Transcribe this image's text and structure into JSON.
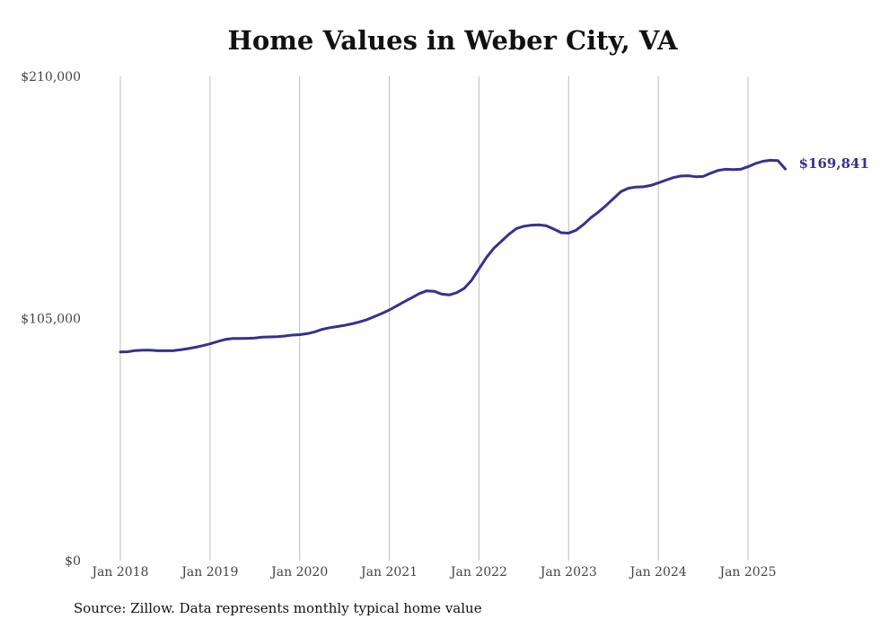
{
  "chart_data": {
    "type": "line",
    "title": "Home Values in Weber City, VA",
    "xlabel": "",
    "ylabel": "",
    "ylim": [
      0,
      210000
    ],
    "xlim": [
      "2018-01",
      "2025-06"
    ],
    "y_ticks": [
      0,
      105000,
      210000
    ],
    "y_tick_labels": [
      "$0",
      "$105,000",
      "$210,000"
    ],
    "x_ticks": [
      "2018-01",
      "2019-01",
      "2020-01",
      "2021-01",
      "2022-01",
      "2023-01",
      "2024-01",
      "2025-01"
    ],
    "x_tick_labels": [
      "Jan 2018",
      "Jan 2019",
      "Jan 2020",
      "Jan 2021",
      "Jan 2022",
      "Jan 2023",
      "Jan 2024",
      "Jan 2025"
    ],
    "grid": "vertical",
    "line_color": "#38308f",
    "end_label": "$169,841",
    "series": [
      {
        "x": [
          "2018-01",
          "2018-02",
          "2018-03",
          "2018-04",
          "2018-05",
          "2018-06",
          "2018-07",
          "2018-08",
          "2018-09",
          "2018-10",
          "2018-11",
          "2018-12",
          "2019-01",
          "2019-02",
          "2019-03",
          "2019-04",
          "2019-05",
          "2019-06",
          "2019-07",
          "2019-08",
          "2019-09",
          "2019-10",
          "2019-11",
          "2019-12",
          "2020-01",
          "2020-02",
          "2020-03",
          "2020-04",
          "2020-05",
          "2020-06",
          "2020-07",
          "2020-08",
          "2020-09",
          "2020-10",
          "2020-11",
          "2020-12",
          "2021-01",
          "2021-02",
          "2021-03",
          "2021-04",
          "2021-05",
          "2021-06",
          "2021-07",
          "2021-08",
          "2021-09",
          "2021-10",
          "2021-11",
          "2021-12",
          "2022-01",
          "2022-02",
          "2022-03",
          "2022-04",
          "2022-05",
          "2022-06",
          "2022-07",
          "2022-08",
          "2022-09",
          "2022-10",
          "2022-11",
          "2022-12",
          "2023-01",
          "2023-02",
          "2023-03",
          "2023-04",
          "2023-05",
          "2023-06",
          "2023-07",
          "2023-08",
          "2023-09",
          "2023-10",
          "2023-11",
          "2023-12",
          "2024-01",
          "2024-02",
          "2024-03",
          "2024-04",
          "2024-05",
          "2024-06",
          "2024-07",
          "2024-08",
          "2024-09",
          "2024-10",
          "2024-11",
          "2024-12",
          "2025-01",
          "2025-02",
          "2025-03",
          "2025-04",
          "2025-05",
          "2025-06"
        ],
        "values": [
          90500,
          90600,
          91100,
          91300,
          91300,
          91000,
          91000,
          91000,
          91400,
          91900,
          92500,
          93200,
          94000,
          95000,
          95900,
          96300,
          96300,
          96400,
          96500,
          96900,
          97000,
          97100,
          97400,
          97800,
          98000,
          98400,
          99200,
          100300,
          101000,
          101500,
          102000,
          102700,
          103500,
          104500,
          105800,
          107200,
          108700,
          110500,
          112300,
          114000,
          115800,
          117000,
          116800,
          115600,
          115200,
          116200,
          118000,
          121500,
          126500,
          131500,
          135500,
          138500,
          141500,
          144000,
          145000,
          145500,
          145600,
          145200,
          143800,
          142200,
          142000,
          143300,
          145800,
          148800,
          151200,
          154000,
          157000,
          160000,
          161500,
          162000,
          162100,
          162700,
          163800,
          165000,
          166100,
          166800,
          166900,
          166500,
          166600,
          168000,
          169200,
          169700,
          169600,
          169700,
          170800,
          172200,
          173200,
          173600,
          173500,
          169841
        ]
      }
    ]
  },
  "source_text": "Source: Zillow. Data represents monthly typical home value"
}
